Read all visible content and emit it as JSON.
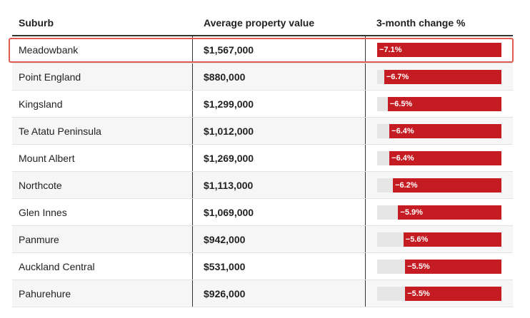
{
  "table": {
    "columns": {
      "suburb": "Suburb",
      "value": "Average property value",
      "change": "3-month change %"
    },
    "max_abs_change": 7.1,
    "bar_color": "#c51b22",
    "track_color": "#e6e6e6",
    "highlight_color": "#e05a4f",
    "rows": [
      {
        "suburb": "Meadowbank",
        "value": "$1,567,000",
        "change_label": "−7.1%",
        "change": -7.1
      },
      {
        "suburb": "Point England",
        "value": "$880,000",
        "change_label": "−6.7%",
        "change": -6.7
      },
      {
        "suburb": "Kingsland",
        "value": "$1,299,000",
        "change_label": "−6.5%",
        "change": -6.5
      },
      {
        "suburb": "Te Atatu Peninsula",
        "value": "$1,012,000",
        "change_label": "−6.4%",
        "change": -6.4
      },
      {
        "suburb": "Mount Albert",
        "value": "$1,269,000",
        "change_label": "−6.4%",
        "change": -6.4
      },
      {
        "suburb": "Northcote",
        "value": "$1,113,000",
        "change_label": "−6.2%",
        "change": -6.2
      },
      {
        "suburb": "Glen Innes",
        "value": "$1,069,000",
        "change_label": "−5.9%",
        "change": -5.9
      },
      {
        "suburb": "Panmure",
        "value": "$942,000",
        "change_label": "−5.6%",
        "change": -5.6
      },
      {
        "suburb": "Auckland Central",
        "value": "$531,000",
        "change_label": "−5.5%",
        "change": -5.5
      },
      {
        "suburb": "Pahurehure",
        "value": "$926,000",
        "change_label": "−5.5%",
        "change": -5.5
      }
    ]
  }
}
